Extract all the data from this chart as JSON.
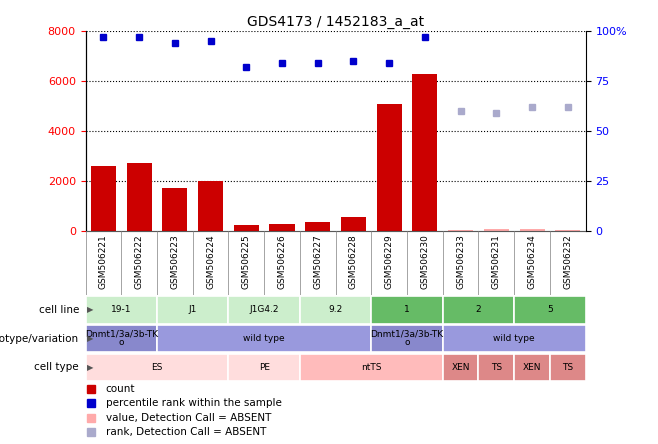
{
  "title": "GDS4173 / 1452183_a_at",
  "samples": [
    "GSM506221",
    "GSM506222",
    "GSM506223",
    "GSM506224",
    "GSM506225",
    "GSM506226",
    "GSM506227",
    "GSM506228",
    "GSM506229",
    "GSM506230",
    "GSM506233",
    "GSM506231",
    "GSM506234",
    "GSM506232"
  ],
  "counts": [
    2600,
    2700,
    1700,
    2000,
    250,
    280,
    350,
    550,
    5100,
    6300,
    50,
    80,
    60,
    50
  ],
  "counts_absent": [
    false,
    false,
    false,
    false,
    false,
    false,
    false,
    false,
    false,
    false,
    true,
    true,
    true,
    true
  ],
  "percentile_ranks": [
    97,
    97,
    94,
    95,
    82,
    84,
    84,
    85,
    84,
    97,
    60,
    59,
    62,
    62
  ],
  "percentile_absent": [
    false,
    false,
    false,
    false,
    false,
    false,
    false,
    false,
    false,
    false,
    true,
    true,
    true,
    true
  ],
  "ylim_left": [
    0,
    8000
  ],
  "ylim_right": [
    0,
    100
  ],
  "yticks_left": [
    0,
    2000,
    4000,
    6000,
    8000
  ],
  "yticks_right": [
    0,
    25,
    50,
    75,
    100
  ],
  "ytick_labels_right": [
    "0",
    "25",
    "50",
    "75",
    "100%"
  ],
  "bar_color": "#cc0000",
  "bar_absent_color": "#ffaaaa",
  "dot_color": "#0000cc",
  "dot_absent_color": "#aaaacc",
  "cell_line_groups": [
    {
      "label": "19-1",
      "start": 0,
      "end": 2,
      "color": "#cceecc"
    },
    {
      "label": "J1",
      "start": 2,
      "end": 4,
      "color": "#cceecc"
    },
    {
      "label": "J1G4.2",
      "start": 4,
      "end": 6,
      "color": "#cceecc"
    },
    {
      "label": "9.2",
      "start": 6,
      "end": 8,
      "color": "#cceecc"
    },
    {
      "label": "1",
      "start": 8,
      "end": 10,
      "color": "#66bb66"
    },
    {
      "label": "2",
      "start": 10,
      "end": 12,
      "color": "#66bb66"
    },
    {
      "label": "5",
      "start": 12,
      "end": 14,
      "color": "#66bb66"
    }
  ],
  "genotype_blocks": [
    {
      "label": "Dnmt1/3a/3b-TK\no",
      "start": 0,
      "end": 2,
      "color": "#8888cc"
    },
    {
      "label": "wild type",
      "start": 2,
      "end": 8,
      "color": "#9999dd"
    },
    {
      "label": "Dnmt1/3a/3b-TK\no",
      "start": 8,
      "end": 10,
      "color": "#8888cc"
    },
    {
      "label": "wild type",
      "start": 10,
      "end": 14,
      "color": "#9999dd"
    }
  ],
  "cell_type_blocks": [
    {
      "label": "ES",
      "start": 0,
      "end": 4,
      "color": "#ffdddd"
    },
    {
      "label": "PE",
      "start": 4,
      "end": 6,
      "color": "#ffdddd"
    },
    {
      "label": "ntTS",
      "start": 6,
      "end": 10,
      "color": "#ffbbbb"
    },
    {
      "label": "XEN",
      "start": 10,
      "end": 11,
      "color": "#dd8888"
    },
    {
      "label": "TS",
      "start": 11,
      "end": 12,
      "color": "#dd8888"
    },
    {
      "label": "XEN",
      "start": 12,
      "end": 13,
      "color": "#dd8888"
    },
    {
      "label": "TS",
      "start": 13,
      "end": 14,
      "color": "#dd8888"
    }
  ],
  "legend_items": [
    {
      "label": "count",
      "color": "#cc0000"
    },
    {
      "label": "percentile rank within the sample",
      "color": "#0000cc"
    },
    {
      "label": "value, Detection Call = ABSENT",
      "color": "#ffaaaa"
    },
    {
      "label": "rank, Detection Call = ABSENT",
      "color": "#aaaacc"
    }
  ],
  "row_labels": [
    "cell line",
    "genotype/variation",
    "cell type"
  ]
}
